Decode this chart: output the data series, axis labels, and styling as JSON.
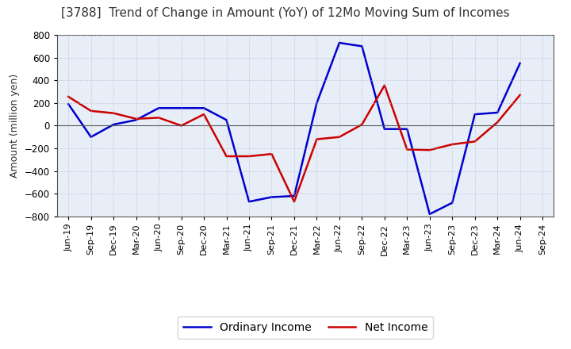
{
  "title": "[3788]  Trend of Change in Amount (YoY) of 12Mo Moving Sum of Incomes",
  "ylabel": "Amount (million yen)",
  "x_labels": [
    "Jun-19",
    "Sep-19",
    "Dec-19",
    "Mar-20",
    "Jun-20",
    "Sep-20",
    "Dec-20",
    "Mar-21",
    "Jun-21",
    "Sep-21",
    "Dec-21",
    "Mar-22",
    "Jun-22",
    "Sep-22",
    "Dec-22",
    "Mar-23",
    "Jun-23",
    "Sep-23",
    "Dec-23",
    "Mar-24",
    "Jun-24",
    "Sep-24"
  ],
  "ordinary_income": [
    190,
    -100,
    10,
    50,
    155,
    155,
    155,
    50,
    -670,
    -630,
    -620,
    200,
    730,
    700,
    -30,
    -30,
    -780,
    -680,
    100,
    115,
    550,
    null
  ],
  "net_income": [
    255,
    130,
    110,
    60,
    70,
    0,
    100,
    -270,
    -270,
    -250,
    -670,
    -120,
    -100,
    10,
    355,
    -210,
    -215,
    -165,
    -140,
    30,
    270,
    null
  ],
  "ordinary_color": "#0000cc",
  "net_color": "#cc0000",
  "ylim": [
    -800,
    800
  ],
  "yticks": [
    -800,
    -600,
    -400,
    -200,
    0,
    200,
    400,
    600,
    800
  ],
  "plot_bg": "#e8eef8",
  "figure_bg": "#ffffff",
  "grid_color": "#b0b8c8",
  "zero_line_color": "#555555",
  "legend_ordinary": "Ordinary Income",
  "legend_net": "Net Income",
  "title_color": "#333333"
}
